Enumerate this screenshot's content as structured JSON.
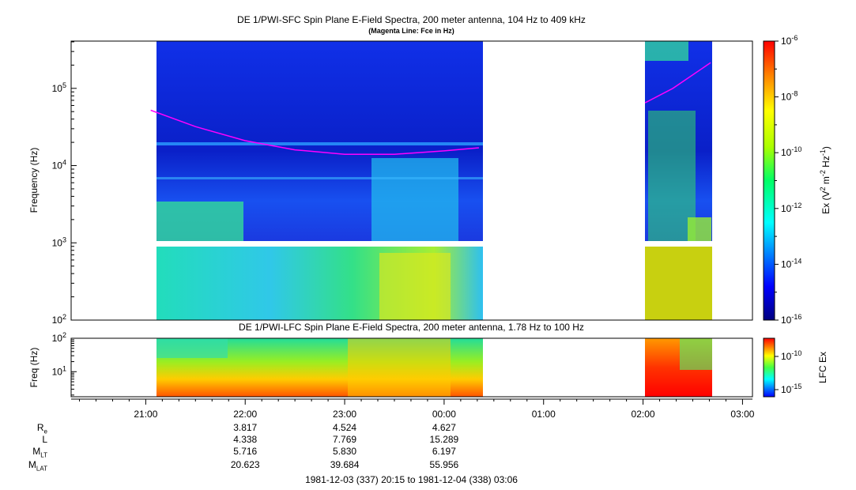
{
  "chart_data": [
    {
      "type": "heatmap",
      "title": "DE 1/PWI-SFC  Spin Plane E-Field Spectra, 200 meter antenna, 104 Hz to 409 kHz",
      "subtitle": "(Magenta Line: Fce in Hz)",
      "ylabel": "Frequency (Hz)",
      "yscale": "log",
      "ylim": [
        100,
        409000
      ],
      "ytick_labels": [
        {
          "base": "10",
          "exp": "2",
          "value": 100
        },
        {
          "base": "10",
          "exp": "3",
          "value": 1000
        },
        {
          "base": "10",
          "exp": "4",
          "value": 10000
        },
        {
          "base": "10",
          "exp": "5",
          "value": 100000
        }
      ],
      "colorbar": {
        "label_base": "Ex (V",
        "label_sup1": "2",
        "label_mid": " m",
        "label_sup2": "-2",
        "label_mid2": " Hz",
        "label_sup3": "-1",
        "label_end": ")",
        "scale": "log",
        "range": [
          1e-16,
          1e-06
        ],
        "tick_labels": [
          {
            "base": "10",
            "exp": "-6",
            "value": 1e-06
          },
          {
            "base": "10",
            "exp": "-8",
            "value": 1e-08
          },
          {
            "base": "10",
            "exp": "-10",
            "value": 1e-10
          },
          {
            "base": "10",
            "exp": "-12",
            "value": 1e-12
          },
          {
            "base": "10",
            "exp": "-14",
            "value": 1e-14
          },
          {
            "base": "10",
            "exp": "-16",
            "value": 1e-16
          }
        ]
      },
      "data_intervals": [
        {
          "start_hours": 21.05,
          "end_hours": 24.4
        },
        {
          "start_hours": 26.02,
          "end_hours": 26.7
        }
      ],
      "series": [
        {
          "name": "Fce",
          "color": "#ff00ff",
          "points": [
            {
              "t": 21.05,
              "f": 52000
            },
            {
              "t": 21.5,
              "f": 32000
            },
            {
              "t": 22.0,
              "f": 21000
            },
            {
              "t": 22.5,
              "f": 16000
            },
            {
              "t": 23.0,
              "f": 14000
            },
            {
              "t": 23.5,
              "f": 14000
            },
            {
              "t": 24.0,
              "f": 15500
            },
            {
              "t": 24.35,
              "f": 17000
            },
            {
              "t": 26.02,
              "f": 65000
            },
            {
              "t": 26.3,
              "f": 100000
            },
            {
              "t": 26.68,
              "f": 215000
            }
          ]
        }
      ]
    },
    {
      "type": "heatmap",
      "title": "DE 1/PWI-LFC  Spin Plane E-Field Spectra, 200 meter antenna, 1.78 Hz to 100 Hz",
      "ylabel": "Freq (Hz)",
      "yscale": "log",
      "ylim": [
        1.78,
        100
      ],
      "ytick_labels": [
        {
          "base": "10",
          "exp": "1",
          "value": 10
        },
        {
          "base": "10",
          "exp": "2",
          "value": 100
        }
      ],
      "colorbar": {
        "label": "LFC Ex",
        "scale": "log",
        "tick_labels": [
          {
            "base": "10",
            "exp": "-10"
          },
          {
            "base": "10",
            "exp": "-15"
          }
        ]
      }
    }
  ],
  "xaxis": {
    "range_hours": [
      20.25,
      27.1
    ],
    "tick_labels": [
      {
        "label": "21:00",
        "hours": 21
      },
      {
        "label": "22:00",
        "hours": 22
      },
      {
        "label": "23:00",
        "hours": 23
      },
      {
        "label": "00:00",
        "hours": 24
      },
      {
        "label": "01:00",
        "hours": 25
      },
      {
        "label": "02:00",
        "hours": 26
      },
      {
        "label": "03:00",
        "hours": 27
      }
    ]
  },
  "ephemeris": {
    "rows": [
      {
        "label": "R",
        "sub": "e",
        "values": [
          "3.817",
          "4.524",
          "4.627"
        ]
      },
      {
        "label": "L",
        "sub": "",
        "values": [
          "4.338",
          "7.769",
          "15.289"
        ]
      },
      {
        "label": "M",
        "sub": "LT",
        "values": [
          "5.716",
          "5.830",
          "6.197"
        ]
      },
      {
        "label": "M",
        "sub": "LAT",
        "values": [
          "20.623",
          "39.684",
          "55.956"
        ]
      }
    ],
    "value_hours": [
      22,
      23,
      24
    ]
  },
  "footer": "1981-12-03 (337) 20:15 to 1981-12-04 (338) 03:06"
}
